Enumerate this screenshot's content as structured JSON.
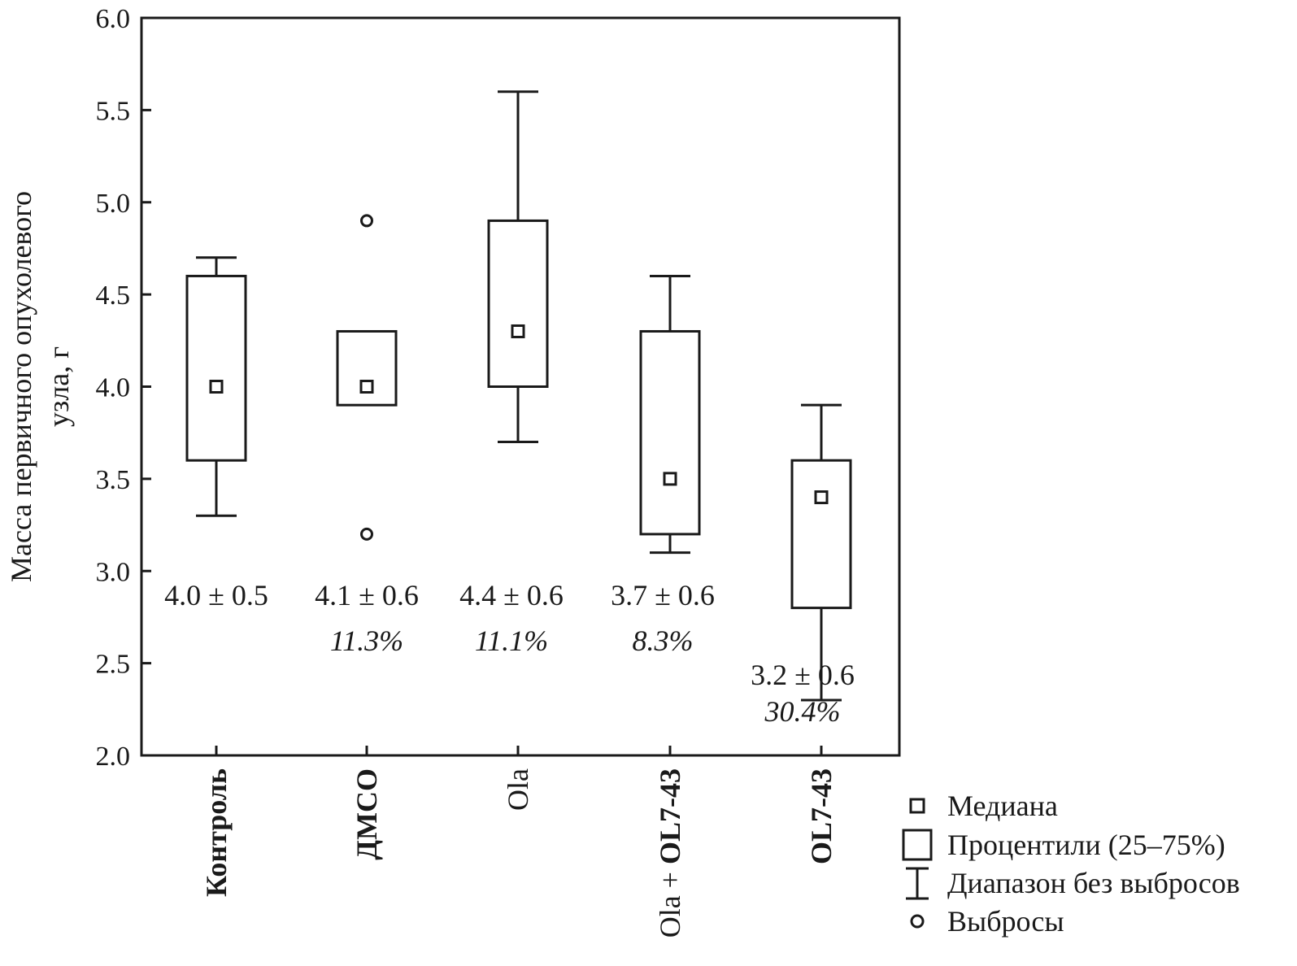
{
  "chart_data": {
    "type": "box",
    "ylabel": "Масса первичного опухолевого узла, г",
    "ylim": [
      2.0,
      6.0
    ],
    "yticks": [
      "2.0",
      "2.5",
      "3.0",
      "3.5",
      "4.0",
      "4.5",
      "5.0",
      "5.5",
      "6.0"
    ],
    "categories": [
      {
        "parts": [
          {
            "text": "Контроль",
            "bold": true
          }
        ]
      },
      {
        "parts": [
          {
            "text": "ДМСО",
            "bold": true
          }
        ]
      },
      {
        "parts": [
          {
            "text": "Ola",
            "bold": false
          }
        ]
      },
      {
        "parts": [
          {
            "text": "Ola + ",
            "bold": false
          },
          {
            "text": "OL7-43",
            "bold": true
          }
        ]
      },
      {
        "parts": [
          {
            "text": "OL7-43",
            "bold": true
          }
        ]
      }
    ],
    "boxes": [
      {
        "q1": 3.6,
        "median": 4.0,
        "q3": 4.6,
        "whisker_low": 3.3,
        "whisker_high": 4.7,
        "outliers": []
      },
      {
        "q1": 3.9,
        "median": 4.0,
        "q3": 4.3,
        "whisker_low": null,
        "whisker_high": null,
        "outliers": [
          4.9,
          3.2
        ]
      },
      {
        "q1": 4.0,
        "median": 4.3,
        "q3": 4.9,
        "whisker_low": 3.7,
        "whisker_high": 5.6,
        "outliers": []
      },
      {
        "q1": 3.2,
        "median": 3.5,
        "q3": 4.3,
        "whisker_low": 3.1,
        "whisker_high": 4.6,
        "outliers": []
      },
      {
        "q1": 2.8,
        "median": 3.4,
        "q3": 3.6,
        "whisker_low": 2.3,
        "whisker_high": 3.9,
        "outliers": []
      }
    ],
    "annotations": [
      {
        "mean": "4.0 ± 0.5",
        "pct": ""
      },
      {
        "mean": "4.1 ± 0.6",
        "pct": "11.3%"
      },
      {
        "mean": "4.4 ± 0.6",
        "pct": "11.1%"
      },
      {
        "mean": "3.7 ± 0.6",
        "pct": "8.3%"
      },
      {
        "mean": "3.2 ± 0.6",
        "pct": "30.4%"
      }
    ],
    "legend": {
      "position": "bottom-right",
      "items": [
        {
          "symbol": "median",
          "label": "Медиана"
        },
        {
          "symbol": "box",
          "label": "Процентили (25–75%)"
        },
        {
          "symbol": "whisker",
          "label": "Диапазон без выбросов"
        },
        {
          "symbol": "outlier",
          "label": "Выбросы"
        }
      ]
    }
  }
}
